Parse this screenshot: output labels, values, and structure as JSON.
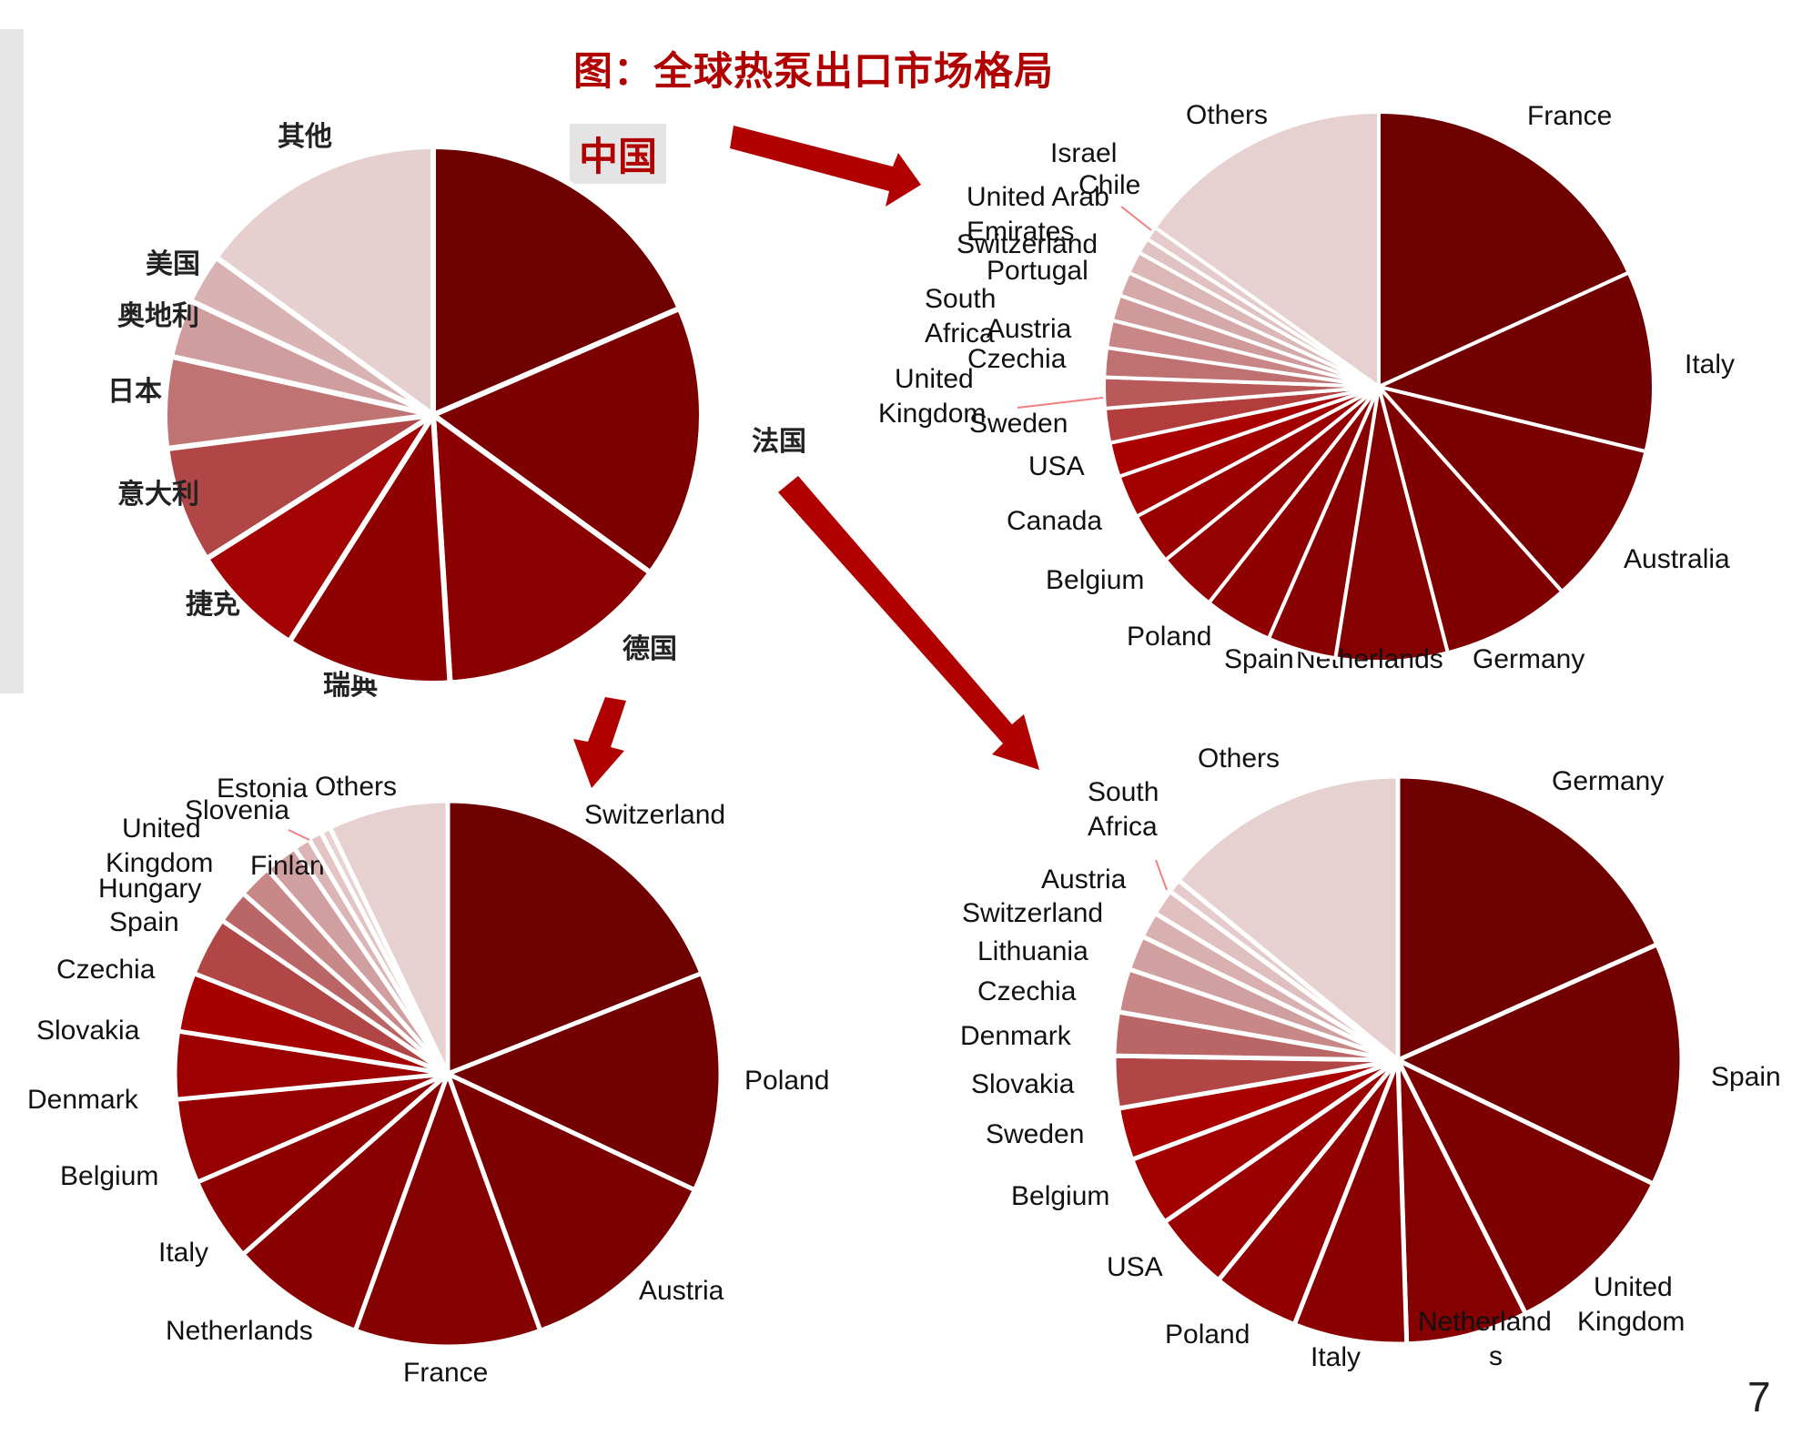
{
  "title": "图：全球热泵出口市场格局",
  "china_label": "中国",
  "page_number": "7",
  "colors": {
    "accent": "#b00000",
    "arrow": "#b00000",
    "leader": "#f08080",
    "sidebar": "#e6e6e6"
  },
  "chart_data": [
    {
      "type": "pie",
      "name": "china",
      "start": "top",
      "direction": "clockwise",
      "slices": [
        {
          "label": "法国",
          "value": 18.5,
          "color": "#6e0000"
        },
        {
          "label": "德国",
          "value": 16.5,
          "color": "#7d0000"
        },
        {
          "label": "瑞典",
          "value": 14.0,
          "color": "#8b0000"
        },
        {
          "label": "捷克",
          "value": 10.0,
          "color": "#8f0000"
        },
        {
          "label": "",
          "value": 7.0,
          "color": "#a30303"
        },
        {
          "label": "意大利",
          "value": 7.0,
          "color": "#b04646"
        },
        {
          "label": "日本",
          "value": 5.5,
          "color": "#bf7373"
        },
        {
          "label": "奥地利",
          "value": 3.5,
          "color": "#cf9d9d"
        },
        {
          "label": "美国",
          "value": 3.0,
          "color": "#d9b3b3"
        },
        {
          "label": "其他",
          "value": 15.0,
          "color": "#e6cfcf"
        }
      ]
    },
    {
      "type": "pie",
      "name": "france",
      "start": "top",
      "direction": "clockwise",
      "slices": [
        {
          "label": "Switzerland",
          "value": 19.0,
          "color": "#6e0000"
        },
        {
          "label": "Poland",
          "value": 13.0,
          "color": "#730000"
        },
        {
          "label": "Austria",
          "value": 12.5,
          "color": "#7d0000"
        },
        {
          "label": "France",
          "value": 11.0,
          "color": "#850000"
        },
        {
          "label": "Netherlands",
          "value": 8.0,
          "color": "#890000"
        },
        {
          "label": "Italy",
          "value": 5.0,
          "color": "#8f0000"
        },
        {
          "label": "Belgium",
          "value": 5.0,
          "color": "#960000"
        },
        {
          "label": "Denmark",
          "value": 4.0,
          "color": "#9d0000"
        },
        {
          "label": "Slovakia",
          "value": 3.5,
          "color": "#a60000"
        },
        {
          "label": "Czechia",
          "value": 3.5,
          "color": "#b04646"
        },
        {
          "label": "Spain",
          "value": 2.0,
          "color": "#bb6666"
        },
        {
          "label": "Hungary",
          "value": 2.0,
          "color": "#c98888"
        },
        {
          "label": "United Kingdom",
          "value": 2.0,
          "color": "#d09f9f"
        },
        {
          "label": "Finland",
          "value": 1.0,
          "color": "#dbb5b5"
        },
        {
          "label": "Slovenia",
          "value": 0.8,
          "color": "#e2c4c4"
        },
        {
          "label": "Estonia",
          "value": 0.6,
          "color": "#e8d2d2"
        },
        {
          "label": "Others",
          "value": 7.1,
          "color": "#e6d0d0"
        }
      ]
    },
    {
      "type": "pie",
      "name": "italy",
      "start": "top",
      "direction": "clockwise",
      "slices": [
        {
          "label": "France",
          "value": 18.0,
          "color": "#6e0000"
        },
        {
          "label": "Italy",
          "value": 10.5,
          "color": "#730000"
        },
        {
          "label": "Australia",
          "value": 9.5,
          "color": "#7a0000"
        },
        {
          "label": "Germany",
          "value": 7.5,
          "color": "#800000"
        },
        {
          "label": "Netherlands",
          "value": 6.5,
          "color": "#850000"
        },
        {
          "label": "Spain",
          "value": 4.0,
          "color": "#890000"
        },
        {
          "label": "Poland",
          "value": 4.0,
          "color": "#8f0000"
        },
        {
          "label": "Belgium",
          "value": 3.5,
          "color": "#950000"
        },
        {
          "label": "Canada",
          "value": 3.0,
          "color": "#9b0000"
        },
        {
          "label": "USA",
          "value": 2.5,
          "color": "#a30000"
        },
        {
          "label": "Sweden",
          "value": 2.0,
          "color": "#aa0000"
        },
        {
          "label": "United Kingdom",
          "value": 2.0,
          "color": "#b33c3c"
        },
        {
          "label": "Czechia",
          "value": 1.8,
          "color": "#b85a5a"
        },
        {
          "label": "Austria",
          "value": 1.7,
          "color": "#bf7070"
        },
        {
          "label": "South Africa",
          "value": 1.6,
          "color": "#c98686"
        },
        {
          "label": "Portugal",
          "value": 1.5,
          "color": "#d09a9a"
        },
        {
          "label": "Switzerland",
          "value": 1.4,
          "color": "#d5a9a9"
        },
        {
          "label": "United Arab Emirates",
          "value": 1.3,
          "color": "#dbb7b7"
        },
        {
          "label": "Chile",
          "value": 0.9,
          "color": "#e0c2c2"
        },
        {
          "label": "Israel",
          "value": 0.8,
          "color": "#e5cbcb"
        },
        {
          "label": "Others",
          "value": 15.0,
          "color": "#e6d0d0"
        }
      ]
    },
    {
      "type": "pie",
      "name": "germany",
      "start": "top",
      "direction": "clockwise",
      "slices": [
        {
          "label": "Germany",
          "value": 18.5,
          "color": "#6e0000"
        },
        {
          "label": "Spain",
          "value": 14.0,
          "color": "#730000"
        },
        {
          "label": "United Kingdom",
          "value": 10.5,
          "color": "#7d0000"
        },
        {
          "label": "Netherlands",
          "value": 7.0,
          "color": "#850000"
        },
        {
          "label": "Italy",
          "value": 6.5,
          "color": "#8a0000"
        },
        {
          "label": "Poland",
          "value": 5.0,
          "color": "#920000"
        },
        {
          "label": "USA",
          "value": 4.5,
          "color": "#9b0000"
        },
        {
          "label": "Belgium",
          "value": 4.0,
          "color": "#a30000"
        },
        {
          "label": "Sweden",
          "value": 3.0,
          "color": "#aa0000"
        },
        {
          "label": "Slovakia",
          "value": 3.0,
          "color": "#b04646"
        },
        {
          "label": "Denmark",
          "value": 2.5,
          "color": "#bb6666"
        },
        {
          "label": "Czechia",
          "value": 2.5,
          "color": "#c98888"
        },
        {
          "label": "Lithuania",
          "value": 2.0,
          "color": "#d09f9f"
        },
        {
          "label": "Switzerland",
          "value": 1.5,
          "color": "#d8b0b0"
        },
        {
          "label": "Austria",
          "value": 1.5,
          "color": "#dfbfbf"
        },
        {
          "label": "South Africa",
          "value": 0.8,
          "color": "#e5cbcb"
        },
        {
          "label": "Others",
          "value": 14.2,
          "color": "#e6d0d0"
        }
      ]
    }
  ]
}
